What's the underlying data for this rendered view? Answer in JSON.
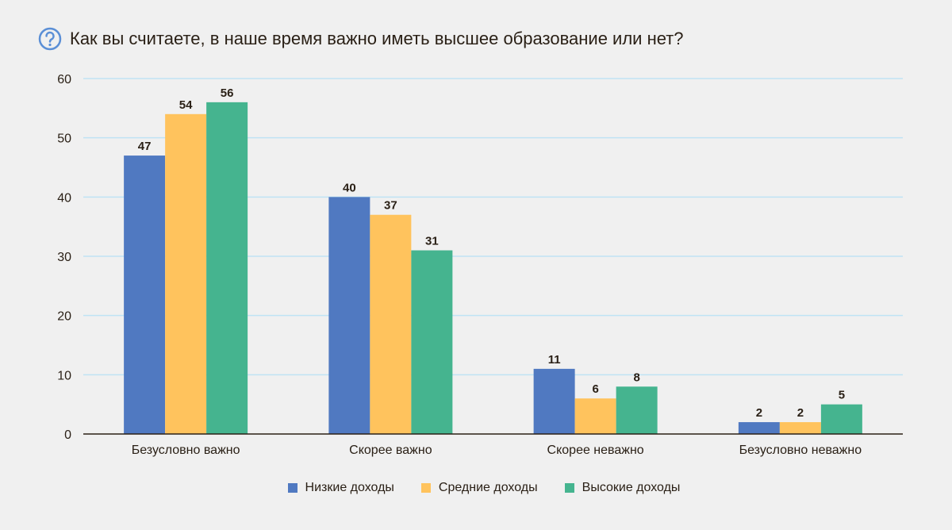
{
  "chart_data": {
    "type": "bar",
    "title": "Как вы считаете, в наше время важно иметь высшее образование или нет?",
    "icon": "question-circle-icon",
    "categories": [
      "Безусловно важно",
      "Скорее важно",
      "Скорее неважно",
      "Безусловно неважно"
    ],
    "series": [
      {
        "name": "Низкие доходы",
        "color": "#5079c1",
        "values": [
          47,
          40,
          11,
          2
        ]
      },
      {
        "name": "Средние доходы",
        "color": "#ffc35d",
        "values": [
          54,
          37,
          6,
          2
        ]
      },
      {
        "name": "Высокие доходы",
        "color": "#45b48f",
        "values": [
          56,
          31,
          8,
          5
        ]
      }
    ],
    "ylim": [
      0,
      60
    ],
    "yticks": [
      0,
      10,
      20,
      30,
      40,
      50,
      60
    ],
    "grid": true,
    "legend": "bottom",
    "xlabel": "",
    "ylabel": ""
  }
}
